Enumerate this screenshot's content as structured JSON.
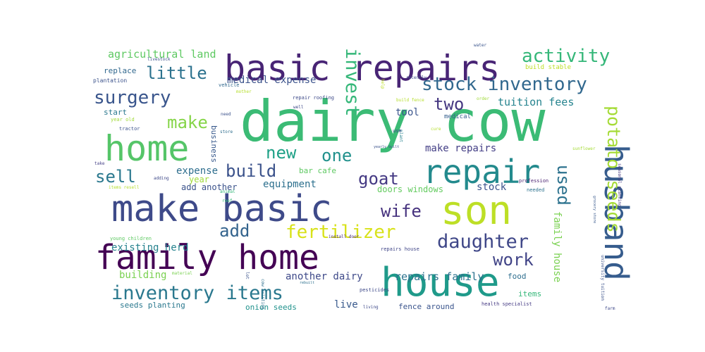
{
  "words": [
    {
      "text": "dairy cow",
      "color": "#3bbb75"
    },
    {
      "text": "basic repairs",
      "color": "#482475"
    },
    {
      "text": "home",
      "color": "#55c568"
    },
    {
      "text": "make basic",
      "color": "#3e4a89"
    },
    {
      "text": "family home",
      "color": "#440154"
    },
    {
      "text": "son",
      "color": "#bddf26"
    },
    {
      "text": "house",
      "color": "#1f9a8a"
    },
    {
      "text": "husband",
      "color": "#365c8d"
    },
    {
      "text": "repair",
      "color": "#238a8d"
    },
    {
      "text": "inventory items",
      "color": "#2a788e"
    },
    {
      "text": "stock inventory",
      "color": "#31688e"
    },
    {
      "text": "surgery",
      "color": "#39558c"
    },
    {
      "text": "potato seeds",
      "color": "#a5db36"
    },
    {
      "text": "fertilizer",
      "color": "#d8e219"
    },
    {
      "text": "daughter",
      "color": "#3f4788"
    },
    {
      "text": "activity",
      "color": "#35b779"
    },
    {
      "text": "invest",
      "color": "#35b779"
    },
    {
      "text": "little",
      "color": "#2c728e"
    },
    {
      "text": "make",
      "color": "#86d549"
    },
    {
      "text": "new",
      "color": "#1fa187"
    },
    {
      "text": "one",
      "color": "#21918c"
    },
    {
      "text": "build",
      "color": "#3b528b"
    },
    {
      "text": "goat",
      "color": "#443983"
    },
    {
      "text": "wife",
      "color": "#46327e"
    },
    {
      "text": "sell",
      "color": "#2a788e"
    },
    {
      "text": "add",
      "color": "#33638d"
    },
    {
      "text": "two",
      "color": "#453781"
    },
    {
      "text": "used",
      "color": "#2c728e"
    },
    {
      "text": "work",
      "color": "#414487"
    },
    {
      "text": "agricultural land",
      "color": "#5ec962"
    },
    {
      "text": "medical expense",
      "color": "#3b528b"
    },
    {
      "text": "tuition fees",
      "color": "#25838e"
    },
    {
      "text": "repairs family",
      "color": "#2c728e"
    },
    {
      "text": "another dairy",
      "color": "#3e4989"
    },
    {
      "text": "family house",
      "color": "#7ad151"
    },
    {
      "text": "equipment",
      "color": "#2d708e"
    },
    {
      "text": "expense",
      "color": "#2e6e8e"
    },
    {
      "text": "make repairs",
      "color": "#433e85"
    },
    {
      "text": "doors windows",
      "color": "#63cb5f"
    },
    {
      "text": "existing herd",
      "color": "#26828e"
    },
    {
      "text": "building",
      "color": "#7ad151"
    },
    {
      "text": "add another",
      "color": "#3b528b"
    },
    {
      "text": "stock",
      "color": "#3b528b"
    },
    {
      "text": "year",
      "color": "#a0da39"
    },
    {
      "text": "live",
      "color": "#38598c"
    },
    {
      "text": "replace",
      "color": "#31688e"
    },
    {
      "text": "tool",
      "color": "#3a548c"
    },
    {
      "text": "start",
      "color": "#2a788e"
    },
    {
      "text": "business",
      "color": "#38598c"
    },
    {
      "text": "bar cafe",
      "color": "#5ec962"
    },
    {
      "text": "onion seeds",
      "color": "#20928c"
    },
    {
      "text": "seeds planting",
      "color": "#2a788e"
    },
    {
      "text": "fence around",
      "color": "#3a548c"
    },
    {
      "text": "medical",
      "color": "#355f8d"
    },
    {
      "text": "food",
      "color": "#2e6e8e"
    },
    {
      "text": "items",
      "color": "#35b779"
    },
    {
      "text": "plantation",
      "color": "#3b528b"
    },
    {
      "text": "repair roofing",
      "color": "#3e4a89"
    },
    {
      "text": "build stable",
      "color": "#bddf26"
    },
    {
      "text": "build fence",
      "color": "#b5de2b"
    },
    {
      "text": "university tuition",
      "color": "#3b528b"
    },
    {
      "text": "health specialist",
      "color": "#443983"
    },
    {
      "text": "pesticides",
      "color": "#3e4989"
    },
    {
      "text": "young children",
      "color": "#5ec962"
    },
    {
      "text": "repairs house",
      "color": "#404688"
    },
    {
      "text": "install door",
      "color": "#482878"
    },
    {
      "text": "vehicle",
      "color": "#31688e"
    },
    {
      "text": "livestock",
      "color": "#3b528b"
    },
    {
      "text": "recently",
      "color": "#3e4989"
    },
    {
      "text": "order",
      "color": "#a0da39"
    },
    {
      "text": "profession",
      "color": "#481f70"
    },
    {
      "text": "needed",
      "color": "#2c728e"
    },
    {
      "text": "water",
      "color": "#3a548c"
    },
    {
      "text": "seasonal planting",
      "color": "#453781"
    },
    {
      "text": "cow existing",
      "color": "#2d708e"
    },
    {
      "text": "tractor",
      "color": "#3b528b"
    },
    {
      "text": "take",
      "color": "#433e85"
    },
    {
      "text": "adding",
      "color": "#3e4989"
    },
    {
      "text": "items resell",
      "color": "#b5de2b"
    },
    {
      "text": "animal",
      "color": "#35b779"
    },
    {
      "text": "plant",
      "color": "#26828e"
    },
    {
      "text": "yearly built",
      "color": "#3b528b"
    },
    {
      "text": "material",
      "color": "#7ad151"
    },
    {
      "text": "living",
      "color": "#3e4989"
    },
    {
      "text": "rebuilt",
      "color": "#2d708e"
    },
    {
      "text": "farm",
      "color": "#3e4989"
    },
    {
      "text": "lot",
      "color": "#3b528b"
    },
    {
      "text": "grocery store",
      "color": "#38598c"
    },
    {
      "text": "mother",
      "color": "#b5de2b"
    },
    {
      "text": "well",
      "color": "#3e4989"
    },
    {
      "text": "need",
      "color": "#3b528b"
    },
    {
      "text": "store",
      "color": "#2e6e8e"
    },
    {
      "text": "reef",
      "color": "#35b779"
    },
    {
      "text": "cure",
      "color": "#b5de2b"
    },
    {
      "text": "sunflower",
      "color": "#a5db36"
    },
    {
      "text": "use",
      "color": "#3e4989"
    },
    {
      "text": "year old",
      "color": "#a0da39"
    },
    {
      "text": "help",
      "color": "#bddf26"
    }
  ]
}
